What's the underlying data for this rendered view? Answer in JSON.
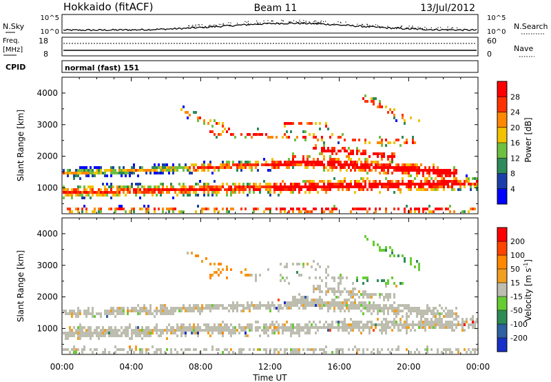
{
  "header": {
    "radar": "Hokkaido (fitACF)",
    "beam": "Beam 11",
    "date": "13/Jul/2012"
  },
  "noise_panel": {
    "left_label": "N.Sky",
    "right_label": "N.Search",
    "left_ticks": [
      "10^5",
      "10^0"
    ],
    "right_ticks": [
      "10^5",
      "10^0"
    ]
  },
  "freq_panel": {
    "left_label_1": "Freq.",
    "left_label_2": "[MHz]",
    "right_label": "Nave",
    "left_ticks": [
      "18",
      "8"
    ],
    "right_ticks": [
      "60",
      "0"
    ]
  },
  "cpid": {
    "label": "CPID",
    "value": "normal (fast) 151"
  },
  "chart_data": [
    {
      "type": "heatmap",
      "title": "",
      "ylabel": "Slant Range [km]",
      "xlabel": "",
      "ylim": [
        180,
        4500
      ],
      "yticks": [
        "1000",
        "2000",
        "3000",
        "4000"
      ],
      "colorbar": {
        "label": "Power [dB]",
        "ticks": [
          "28",
          "24",
          "20",
          "16",
          "12",
          "8",
          "4"
        ],
        "colors": [
          "#0000ff",
          "#1c3ea8",
          "#2d8a5a",
          "#6fc040",
          "#f2c100",
          "#ff8800",
          "#ff3300",
          "#ff0000"
        ]
      }
    },
    {
      "type": "heatmap",
      "title": "",
      "ylabel": "Slant Range [km]",
      "xlabel": "Time UT",
      "ylim": [
        180,
        4500
      ],
      "xlim": [
        "00:00",
        "24:00"
      ],
      "yticks": [
        "1000",
        "2000",
        "3000",
        "4000"
      ],
      "xticks": [
        "00:00",
        "04:00",
        "08:00",
        "12:00",
        "16:00",
        "20:00",
        "00:00"
      ],
      "colorbar": {
        "label": "Velocity [m s^-1]",
        "ticks": [
          "200",
          "100",
          "50",
          "15",
          "-15",
          "-50",
          "-100",
          "-200"
        ],
        "colors": [
          "#1830c8",
          "#2f60a0",
          "#2e8b57",
          "#66cc33",
          "#bdbdb0",
          "#f0a020",
          "#ff8800",
          "#ff4400",
          "#ff0000"
        ]
      }
    }
  ]
}
